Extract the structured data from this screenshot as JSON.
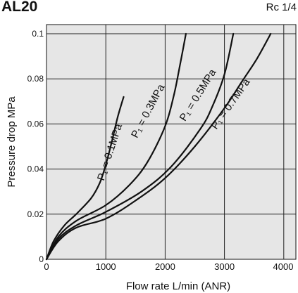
{
  "header": {
    "title": "AL20",
    "port": "Rc 1/4"
  },
  "chart_data": {
    "type": "line",
    "xlabel": "Flow rate  L/min (ANR)",
    "ylabel": "Pressure drop  MPa",
    "xlim": [
      0,
      4000
    ],
    "ylim": [
      0,
      0.1
    ],
    "xticks": [
      0,
      1000,
      2000,
      3000,
      4000
    ],
    "yticks": [
      0,
      0.02,
      0.04,
      0.06,
      0.08,
      0.1
    ],
    "xtick_labels": [
      "0",
      "1000",
      "2000",
      "3000",
      "4000"
    ],
    "ytick_labels": [
      "0",
      "0.02",
      "0.04",
      "0.06",
      "0.08",
      "0.1"
    ],
    "grid": true,
    "series_color": "#111111",
    "background": "#e6e6e6",
    "series": [
      {
        "name": "P₁ = 0.1MPa",
        "x": [
          0,
          120,
          300,
          500,
          750,
          900,
          1000,
          1100,
          1200,
          1300
        ],
        "y": [
          0,
          0.008,
          0.015,
          0.02,
          0.027,
          0.034,
          0.042,
          0.052,
          0.063,
          0.072
        ]
      },
      {
        "name": "P₁ = 0.3MPa",
        "x": [
          0,
          200,
          500,
          1000,
          1400,
          1700,
          2000,
          2150,
          2250,
          2350
        ],
        "y": [
          0,
          0.01,
          0.017,
          0.024,
          0.033,
          0.043,
          0.059,
          0.073,
          0.086,
          0.1
        ]
      },
      {
        "name": "P₁ = 0.5MPa",
        "x": [
          0,
          200,
          500,
          1000,
          1600,
          2100,
          2600,
          2800,
          3000,
          3150
        ],
        "y": [
          0,
          0.009,
          0.015,
          0.021,
          0.03,
          0.041,
          0.058,
          0.068,
          0.082,
          0.1
        ]
      },
      {
        "name": "P₁ = 0.7MPa",
        "x": [
          0,
          200,
          500,
          1000,
          1500,
          2000,
          2500,
          3000,
          3300,
          3550,
          3780
        ],
        "y": [
          0,
          0.008,
          0.014,
          0.018,
          0.026,
          0.036,
          0.05,
          0.067,
          0.079,
          0.089,
          0.1
        ]
      }
    ]
  }
}
